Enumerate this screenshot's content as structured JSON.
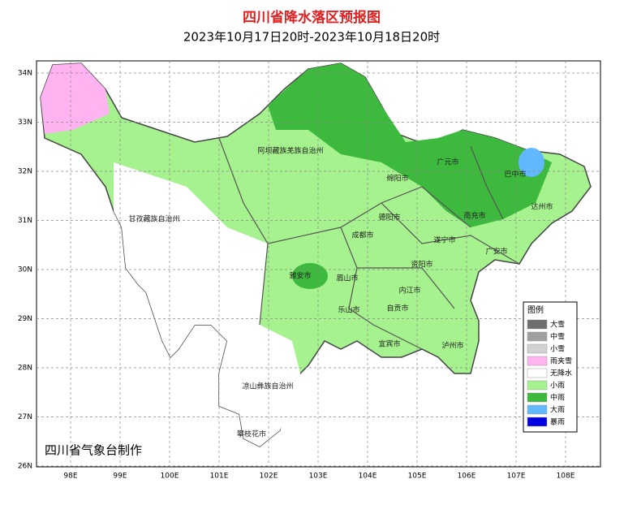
{
  "header": {
    "title": "四川省降水落区预报图",
    "subtitle": "2023年10月17日20时-2023年10月18日20时"
  },
  "axes": {
    "lon_labels": [
      "98E",
      "99E",
      "100E",
      "101E",
      "102E",
      "103E",
      "104E",
      "105E",
      "106E",
      "107E",
      "108E"
    ],
    "lat_labels": [
      "34N",
      "33N",
      "32N",
      "31N",
      "30N",
      "29N",
      "28N",
      "27N",
      "26N"
    ]
  },
  "regions": [
    "阿坝藏族羌族自治州",
    "甘孜藏族自治州",
    "凉山彝族自治州",
    "攀枝花市",
    "绵阳市",
    "广元市",
    "巴中市",
    "达州市",
    "南充市",
    "德阳市",
    "成都市",
    "遂宁市",
    "广安市",
    "资阳市",
    "雅安市",
    "眉山市",
    "乐山市",
    "内江市",
    "自贡市",
    "宜宾市",
    "泸州市"
  ],
  "legend": {
    "title": "图例",
    "items": [
      {
        "name": "大雪",
        "color": "#6e6e6e"
      },
      {
        "name": "中雪",
        "color": "#a0a0a0"
      },
      {
        "name": "小雪",
        "color": "#d2d2d2"
      },
      {
        "name": "雨夹雪",
        "color": "#ffb3f0"
      },
      {
        "name": "无降水",
        "color": "#ffffff"
      },
      {
        "name": "小雨",
        "color": "#a6f28f"
      },
      {
        "name": "中雨",
        "color": "#3dba3d"
      },
      {
        "name": "大雨",
        "color": "#61b8ff"
      },
      {
        "name": "暴雨",
        "color": "#0000e1"
      }
    ]
  },
  "footer": "四川省气象台制作"
}
